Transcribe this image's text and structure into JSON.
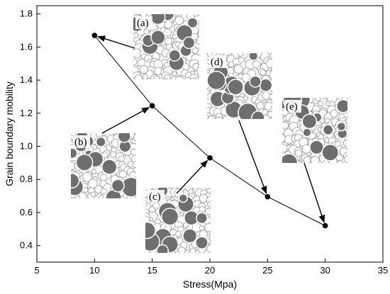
{
  "chart_data": {
    "type": "line",
    "x": [
      10,
      15,
      20,
      25,
      30
    ],
    "series": [
      {
        "values": [
          1.67,
          1.245,
          0.93,
          0.695,
          0.52
        ]
      }
    ],
    "xlabel": "Stress(Mpa)",
    "ylabel": "Grain boundary mobility",
    "xlim": [
      5,
      35
    ],
    "ylim": [
      0.3,
      1.85
    ],
    "xticks": [
      5,
      10,
      15,
      20,
      25,
      30,
      35
    ],
    "yticks": [
      0.4,
      0.6,
      0.8,
      1.0,
      1.2,
      1.4,
      1.6,
      1.8
    ],
    "ytick_labels": [
      "0.4",
      "0.6",
      "0.8",
      "1.0",
      "1.2",
      "1.4",
      "1.6",
      "1.8"
    ],
    "grid": false,
    "legend": "none",
    "annotations": [
      {
        "label": "(a)",
        "points_to_x": 10
      },
      {
        "label": "(b)",
        "points_to_x": 15
      },
      {
        "label": "(c)",
        "points_to_x": 20
      },
      {
        "label": "(d)",
        "points_to_x": 25
      },
      {
        "label": "(e)",
        "points_to_x": 30
      }
    ],
    "colors": {
      "line": "#000000",
      "marker": "#000000",
      "grain_fill": "#6e6e6e",
      "matrix": "#f2f2f2"
    }
  }
}
